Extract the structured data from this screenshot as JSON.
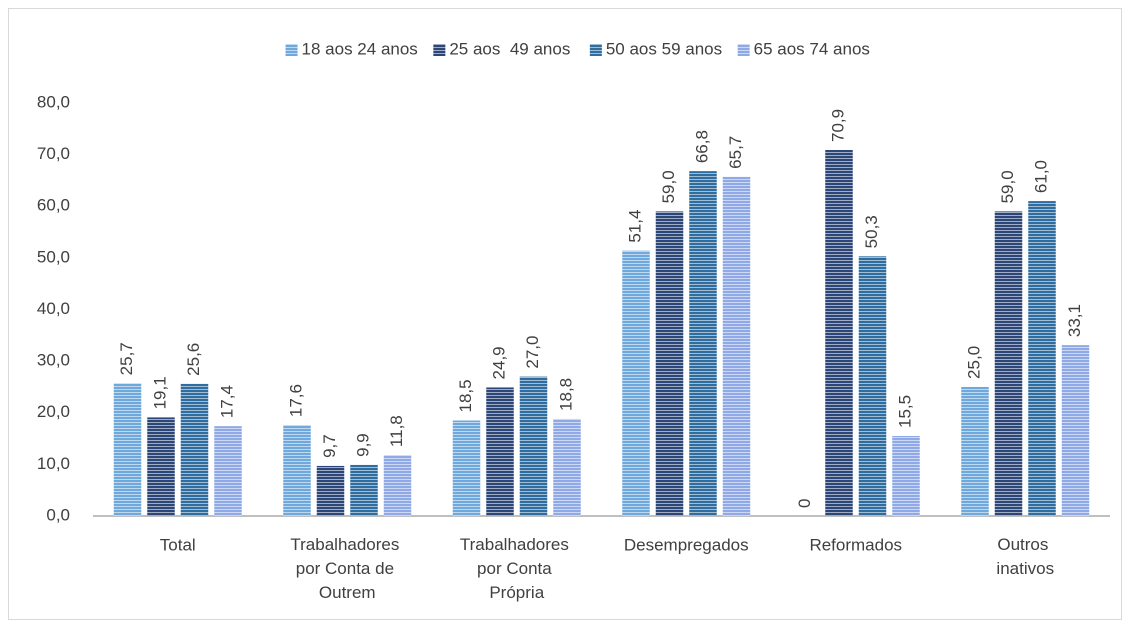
{
  "chart_data": {
    "type": "bar",
    "categories": [
      "Total",
      "Trabalhadores por Conta de Outrem",
      "Trabalhadores por Conta Própria",
      "Desempregados",
      "Reformados",
      "Outros inativos"
    ],
    "series": [
      {
        "name": "18 aos 24 anos",
        "color": "#6fa8dc",
        "values": [
          25.7,
          17.6,
          18.5,
          51.4,
          0,
          25.0
        ],
        "value_labels": [
          "25,7",
          "17,6",
          "18,5",
          "51,4",
          "0",
          "25,0"
        ]
      },
      {
        "name": "25 aos  49 anos",
        "color": "#2c4677",
        "values": [
          19.1,
          9.7,
          24.9,
          59.0,
          70.9,
          59.0
        ],
        "value_labels": [
          "19,1",
          "9,7",
          "24,9",
          "59,0",
          "70,9",
          "59,0"
        ]
      },
      {
        "name": "50 aos 59 anos",
        "color": "#2f6c9f",
        "values": [
          25.6,
          9.9,
          27.0,
          66.8,
          50.3,
          61.0
        ],
        "value_labels": [
          "25,6",
          "9,9",
          "27,0",
          "66,8",
          "50,3",
          "61,0"
        ]
      },
      {
        "name": "65 aos 74 anos",
        "color": "#8fa9e6",
        "values": [
          17.4,
          11.8,
          18.8,
          65.7,
          15.5,
          33.1
        ],
        "value_labels": [
          "17,4",
          "11,8",
          "18,8",
          "65,7",
          "15,5",
          "33,1"
        ]
      }
    ],
    "ylim": [
      0,
      80
    ],
    "yticks": [
      {
        "value": 0,
        "label": "0,0"
      },
      {
        "value": 10,
        "label": "10,0"
      },
      {
        "value": 20,
        "label": "20,0"
      },
      {
        "value": 30,
        "label": "30,0"
      },
      {
        "value": 40,
        "label": "40,0"
      },
      {
        "value": 50,
        "label": "50,0"
      },
      {
        "value": 60,
        "label": "60,0"
      },
      {
        "value": 70,
        "label": "70,0"
      },
      {
        "value": 80,
        "label": "80,0"
      }
    ],
    "legend": "top"
  }
}
